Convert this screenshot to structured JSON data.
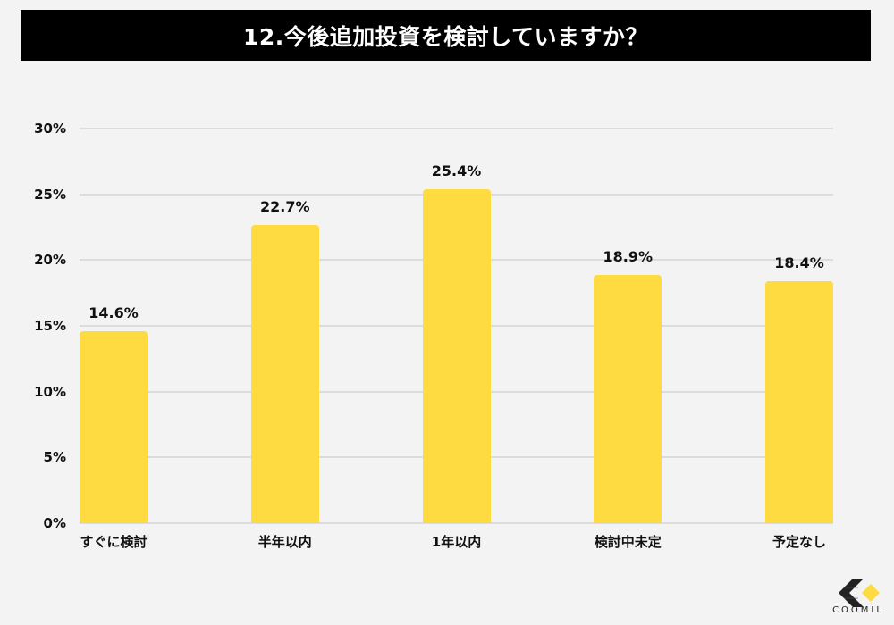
{
  "header": {
    "title": "12.今後追加投資を検討していますか？"
  },
  "branding": {
    "logo_text": "COOMIL",
    "logo_accent": "#fedb40",
    "logo_dark": "#222222"
  },
  "colors": {
    "bar": "#fedb40",
    "title_bg": "#000000",
    "title_fg": "#ffffff",
    "background": "#f3f3f3",
    "grid": "#dcdcdc"
  },
  "chart_data": {
    "type": "bar",
    "title": "12.今後追加投資を検討していますか？",
    "xlabel": "",
    "ylabel": "",
    "categories": [
      "すぐに検討",
      "半年以内",
      "1年以内",
      "検討中未定",
      "予定なし"
    ],
    "values": [
      14.6,
      22.7,
      25.4,
      18.9,
      18.4
    ],
    "value_labels": [
      "14.6%",
      "22.7%",
      "25.4%",
      "18.9%",
      "18.4%"
    ],
    "ylim": [
      0,
      30
    ],
    "yticks": [
      "0%",
      "5%",
      "10%",
      "15%",
      "20%",
      "25%",
      "30%"
    ],
    "grid": true,
    "legend": null
  }
}
